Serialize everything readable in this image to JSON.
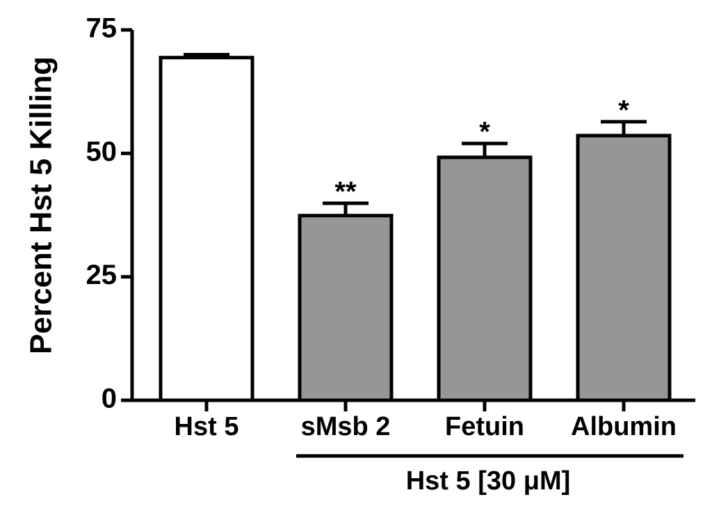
{
  "chart_data": {
    "type": "bar",
    "y_label": "Percent Hst 5 Killing",
    "categories": [
      "Hst 5",
      "sMsb 2",
      "Fetuin",
      "Albumin"
    ],
    "values": [
      69.4,
      37.4,
      49.2,
      53.6
    ],
    "errors": [
      0.6,
      2.5,
      2.8,
      2.8
    ],
    "colors": [
      "#ffffff",
      "#969696",
      "#969696",
      "#969696"
    ],
    "annotations": [
      {
        "category": "sMsb 2",
        "text": "**"
      },
      {
        "category": "Fetuin",
        "text": "*"
      },
      {
        "category": "Albumin",
        "text": "*"
      }
    ],
    "group_label": {
      "text": "Hst 5 [30 μM]",
      "from": "sMsb 2",
      "to": "Albumin"
    },
    "ylim": [
      0,
      75
    ],
    "yticks": [
      0,
      25,
      50,
      75
    ]
  }
}
